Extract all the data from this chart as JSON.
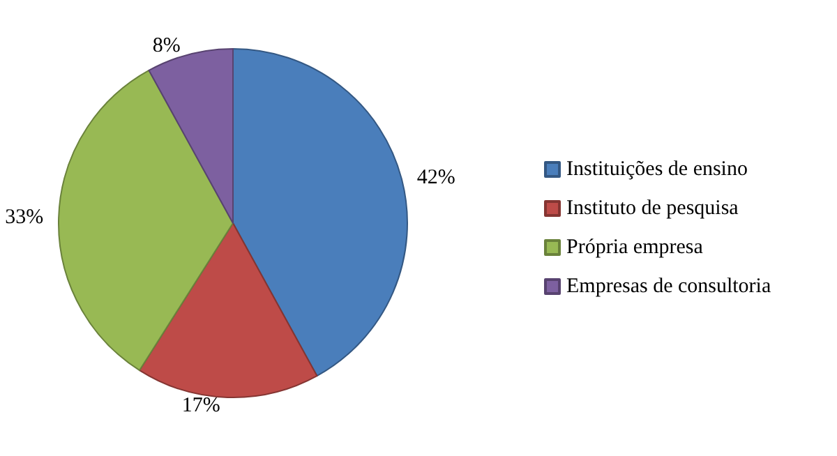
{
  "chart_data": {
    "type": "pie",
    "categories": [
      "Instituições de ensino",
      "Instituto de pesquisa",
      "Própria empresa",
      "Empresas de consultoria"
    ],
    "values": [
      42,
      17,
      33,
      8
    ],
    "colors": [
      "#4a7ebb",
      "#be4b48",
      "#98b954",
      "#7d60a0"
    ],
    "value_labels": [
      "42%",
      "17%",
      "33%",
      "8%"
    ],
    "legend": "right"
  }
}
